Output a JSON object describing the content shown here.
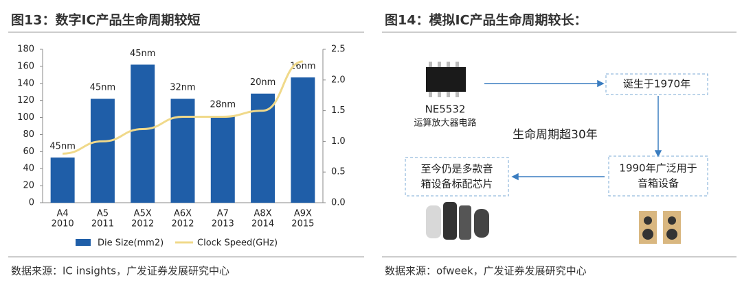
{
  "left": {
    "heading": "图13：数字IC产品生命周期较短",
    "source": "数据来源：IC insights，广发证券发展研究中心"
  },
  "chart_data": {
    "type": "bar",
    "categories": [
      [
        "A4",
        "2010"
      ],
      [
        "A5",
        "2011"
      ],
      [
        "A5X",
        "2012"
      ],
      [
        "A6X",
        "2012"
      ],
      [
        "A7",
        "2013"
      ],
      [
        "A8X",
        "2014"
      ],
      [
        "A9X",
        "2015"
      ]
    ],
    "process_labels": [
      "45nm",
      "45nm",
      "45nm",
      "32nm",
      "28nm",
      "20nm",
      "16nm"
    ],
    "series": [
      {
        "name": "Die Size(mm2)",
        "color": "#1f5ea8",
        "type": "bar",
        "values": [
          53,
          122,
          162,
          122,
          102,
          128,
          147
        ]
      },
      {
        "name": "Clock Speed(GHz)",
        "color": "#f0d98a",
        "type": "line",
        "axis": "y2",
        "values": [
          0.8,
          1.0,
          1.2,
          1.4,
          1.4,
          1.5,
          2.3
        ]
      }
    ],
    "ylim": [
      0,
      180
    ],
    "yticks": [
      0,
      20,
      40,
      60,
      80,
      100,
      120,
      140,
      160,
      180
    ],
    "y2lim": [
      0,
      2.5
    ],
    "y2ticks": [
      {
        "value": 0,
        "label": "0.0"
      },
      0.5,
      {
        "value": 1,
        "label": "1.0"
      },
      1.5,
      {
        "value": 2,
        "label": "2.0"
      },
      2.5
    ],
    "legend": "bottom"
  },
  "right": {
    "heading": "图14：模拟IC产品生命周期较长：",
    "chip": {
      "name": "NE5532",
      "desc": "运算放大器电路"
    },
    "center": "生命周期超30年",
    "boxes": [
      [
        "诞生于1970年"
      ],
      [
        "1990年广泛用于",
        "音箱设备"
      ],
      [
        "至今仍是多款音",
        "箱设备标配芯片"
      ]
    ],
    "source": "数据来源：ofweek，广发证券发展研究中心"
  }
}
